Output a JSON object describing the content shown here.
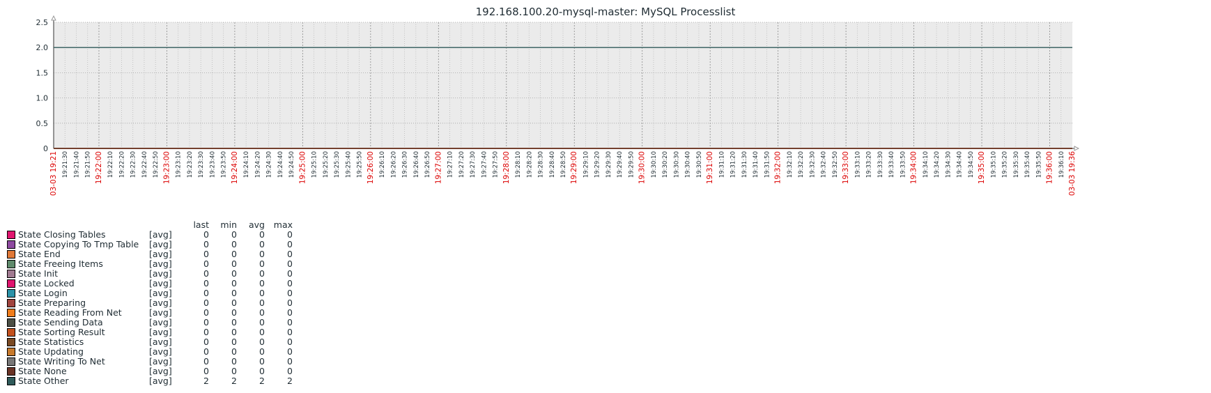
{
  "chart_data": {
    "type": "line",
    "title": "192.168.100.20-mysql-master: MySQL Processlist",
    "ylim": [
      0,
      2.5
    ],
    "yticks": [
      "2.5",
      "2.0",
      "1.5",
      "1.0",
      "0.5",
      "0"
    ],
    "x_start": "03-03 19:21",
    "x_end": "03-03 19:36",
    "x_tick_labels": [
      "03-03 19:21",
      "19:21:30",
      "19:21:40",
      "19:21:50",
      "19:22:00",
      "19:22:10",
      "19:22:20",
      "19:22:30",
      "19:22:40",
      "19:22:50",
      "19:23:00",
      "19:23:10",
      "19:23:20",
      "19:23:30",
      "19:23:40",
      "19:23:50",
      "19:24:00",
      "19:24:10",
      "19:24:20",
      "19:24:30",
      "19:24:40",
      "19:24:50",
      "19:25:00",
      "19:25:10",
      "19:25:20",
      "19:25:30",
      "19:25:40",
      "19:25:50",
      "19:26:00",
      "19:26:10",
      "19:26:20",
      "19:26:30",
      "19:26:40",
      "19:26:50",
      "19:27:00",
      "19:27:10",
      "19:27:20",
      "19:27:30",
      "19:27:40",
      "19:27:50",
      "19:28:00",
      "19:28:10",
      "19:28:20",
      "19:28:30",
      "19:28:40",
      "19:28:50",
      "19:29:00",
      "19:29:10",
      "19:29:20",
      "19:29:30",
      "19:29:40",
      "19:29:50",
      "19:30:00",
      "19:30:10",
      "19:30:20",
      "19:30:30",
      "19:30:40",
      "19:30:50",
      "19:31:00",
      "19:31:10",
      "19:31:20",
      "19:31:30",
      "19:31:40",
      "19:31:50",
      "19:32:00",
      "19:32:10",
      "19:32:20",
      "19:32:30",
      "19:32:40",
      "19:32:50",
      "19:33:00",
      "19:33:10",
      "19:33:20",
      "19:33:30",
      "19:33:40",
      "19:33:50",
      "19:34:00",
      "19:34:10",
      "19:34:20",
      "19:34:30",
      "19:34:40",
      "19:34:50",
      "19:35:00",
      "19:35:10",
      "19:35:20",
      "19:35:30",
      "19:35:40",
      "19:35:50",
      "19:36:00",
      "19:36:10",
      "03-03 19:36"
    ],
    "highlight_color": "#dc0000",
    "plot_bg": "#ebebeb",
    "grid": true,
    "legend_placement": "bottom-left",
    "legend_columns": [
      "last",
      "min",
      "avg",
      "max"
    ],
    "series": [
      {
        "name": "State Closing Tables",
        "func": "[avg]",
        "color": "#e0156e",
        "last": "0",
        "min": "0",
        "avg": "0",
        "max": "0",
        "y": [
          0,
          0
        ]
      },
      {
        "name": "State Copying To Tmp Table",
        "func": "[avg]",
        "color": "#8e4aa0",
        "last": "0",
        "min": "0",
        "avg": "0",
        "max": "0",
        "y": [
          0,
          0
        ]
      },
      {
        "name": "State End",
        "func": "[avg]",
        "color": "#e07837",
        "last": "0",
        "min": "0",
        "avg": "0",
        "max": "0",
        "y": [
          0,
          0
        ]
      },
      {
        "name": "State Freeing Items",
        "func": "[avg]",
        "color": "#5f8a6b",
        "last": "0",
        "min": "0",
        "avg": "0",
        "max": "0",
        "y": [
          0,
          0
        ]
      },
      {
        "name": "State Init",
        "func": "[avg]",
        "color": "#a07a90",
        "last": "0",
        "min": "0",
        "avg": "0",
        "max": "0",
        "y": [
          0,
          0
        ]
      },
      {
        "name": "State Locked",
        "func": "[avg]",
        "color": "#e0156e",
        "last": "0",
        "min": "0",
        "avg": "0",
        "max": "0",
        "y": [
          0,
          0
        ]
      },
      {
        "name": "State Login",
        "func": "[avg]",
        "color": "#2b92a8",
        "last": "0",
        "min": "0",
        "avg": "0",
        "max": "0",
        "y": [
          0,
          0
        ]
      },
      {
        "name": "State Preparing",
        "func": "[avg]",
        "color": "#a0443e",
        "last": "0",
        "min": "0",
        "avg": "0",
        "max": "0",
        "y": [
          0,
          0
        ]
      },
      {
        "name": "State Reading From Net",
        "func": "[avg]",
        "color": "#f07c1a",
        "last": "0",
        "min": "0",
        "avg": "0",
        "max": "0",
        "y": [
          0,
          0
        ]
      },
      {
        "name": "State Sending Data",
        "func": "[avg]",
        "color": "#4b4f45",
        "last": "0",
        "min": "0",
        "avg": "0",
        "max": "0",
        "y": [
          0,
          0
        ]
      },
      {
        "name": "State Sorting Result",
        "func": "[avg]",
        "color": "#c2501d",
        "last": "0",
        "min": "0",
        "avg": "0",
        "max": "0",
        "y": [
          0,
          0
        ]
      },
      {
        "name": "State Statistics",
        "func": "[avg]",
        "color": "#7a4a23",
        "last": "0",
        "min": "0",
        "avg": "0",
        "max": "0",
        "y": [
          0,
          0
        ]
      },
      {
        "name": "State Updating",
        "func": "[avg]",
        "color": "#c7792b",
        "last": "0",
        "min": "0",
        "avg": "0",
        "max": "0",
        "y": [
          0,
          0
        ]
      },
      {
        "name": "State Writing To Net",
        "func": "[avg]",
        "color": "#777777",
        "last": "0",
        "min": "0",
        "avg": "0",
        "max": "0",
        "y": [
          0,
          0
        ]
      },
      {
        "name": "State None",
        "func": "[avg]",
        "color": "#6a3325",
        "last": "0",
        "min": "0",
        "avg": "0",
        "max": "0",
        "y": [
          0,
          0
        ]
      },
      {
        "name": "State Other",
        "func": "[avg]",
        "color": "#2f5a5a",
        "last": "2",
        "min": "2",
        "avg": "2",
        "max": "2",
        "y": [
          2,
          2
        ]
      }
    ]
  }
}
